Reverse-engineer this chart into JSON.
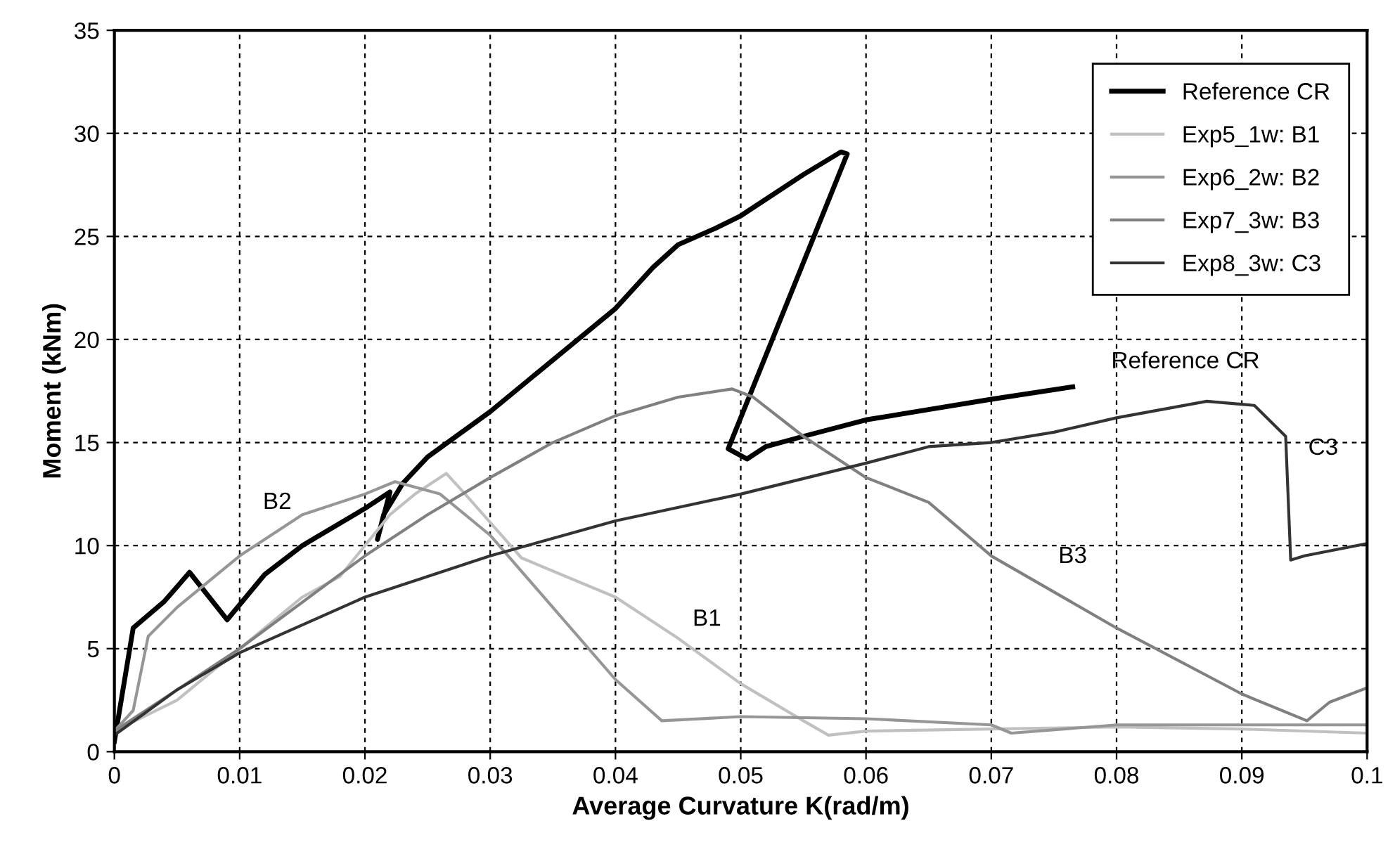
{
  "chart_data": {
    "type": "line",
    "xlabel": "Average Curvature K(rad/m)",
    "ylabel": "Moment (kNm)",
    "xlim": [
      0,
      0.1
    ],
    "ylim": [
      0,
      35
    ],
    "xticks": [
      0,
      0.01,
      0.02,
      0.03,
      0.04,
      0.05,
      0.06,
      0.07,
      0.08,
      0.09,
      0.1
    ],
    "yticks": [
      0,
      5,
      10,
      15,
      20,
      25,
      30,
      35
    ],
    "grid": true,
    "legend": "top right",
    "marker": "none",
    "line_style": "solid",
    "series": [
      {
        "name": "Reference CR",
        "color": "#000000",
        "x": [
          0,
          0.0015,
          0.004,
          0.006,
          0.009,
          0.012,
          0.015,
          0.02,
          0.022,
          0.021,
          0.0215,
          0.023,
          0.025,
          0.03,
          0.033,
          0.04,
          0.043,
          0.045,
          0.048,
          0.05,
          0.055,
          0.058,
          0.0585,
          0.049,
          0.0505,
          0.052,
          0.055,
          0.06,
          0.065,
          0.07,
          0.0765
        ],
        "values": [
          0.5,
          6,
          7.3,
          8.7,
          6.4,
          8.6,
          10,
          11.8,
          12.6,
          10.3,
          11.5,
          13,
          14.3,
          16.5,
          18,
          21.5,
          23.5,
          24.6,
          25.4,
          26,
          28,
          29.1,
          29,
          14.7,
          14.2,
          14.8,
          15.3,
          16.1,
          16.6,
          17.1,
          17.7
        ]
      },
      {
        "name": "Exp5_1w: B1",
        "color": "#c0c0c0",
        "x": [
          0,
          0.005,
          0.01,
          0.013,
          0.015,
          0.018,
          0.02,
          0.022,
          0.024,
          0.0265,
          0.028,
          0.0325,
          0.04,
          0.045,
          0.05,
          0.055,
          0.057,
          0.06,
          0.07,
          0.08,
          0.09,
          0.1
        ],
        "values": [
          1,
          2.5,
          5,
          6.5,
          7.5,
          8.5,
          10,
          11.5,
          12.5,
          13.5,
          12.5,
          9.4,
          7.5,
          5.5,
          3.3,
          1.5,
          0.8,
          1,
          1.1,
          1.2,
          1.1,
          0.9
        ]
      },
      {
        "name": "Exp6_2w: B2",
        "color": "#969696",
        "x": [
          0,
          0.0015,
          0.0027,
          0.005,
          0.01,
          0.015,
          0.02,
          0.0224,
          0.026,
          0.03,
          0.035,
          0.04,
          0.0437,
          0.05,
          0.06,
          0.07,
          0.0716,
          0.08,
          0.09,
          0.1
        ],
        "values": [
          1,
          2,
          5.6,
          7,
          9.5,
          11.5,
          12.5,
          13.1,
          12.5,
          10.5,
          7,
          3.5,
          1.5,
          1.7,
          1.6,
          1.3,
          0.9,
          1.3,
          1.3,
          1.3
        ]
      },
      {
        "name": "Exp7_3w: B3",
        "color": "#808080",
        "x": [
          0,
          0.01,
          0.02,
          0.025,
          0.03,
          0.035,
          0.04,
          0.045,
          0.0493,
          0.051,
          0.055,
          0.06,
          0.065,
          0.07,
          0.08,
          0.09,
          0.0952,
          0.097,
          0.1
        ],
        "values": [
          1,
          5,
          9.5,
          11.5,
          13.3,
          15,
          16.3,
          17.2,
          17.6,
          17.2,
          15.3,
          13.3,
          12.1,
          9.5,
          6,
          2.8,
          1.5,
          2.4,
          3.1
        ]
      },
      {
        "name": "Exp8_3w: C3",
        "color": "#333333",
        "x": [
          0,
          0.005,
          0.01,
          0.02,
          0.03,
          0.04,
          0.05,
          0.06,
          0.065,
          0.07,
          0.075,
          0.08,
          0.0872,
          0.091,
          0.0935,
          0.0939,
          0.095,
          0.1
        ],
        "values": [
          0.8,
          3,
          4.8,
          7.5,
          9.5,
          11.2,
          12.5,
          14,
          14.8,
          15,
          15.5,
          16.2,
          17,
          16.8,
          15.3,
          9.3,
          9.5,
          10.1
        ]
      }
    ],
    "annotations": [
      "Reference CR",
      "B2",
      "B1",
      "B3",
      "C3"
    ]
  }
}
